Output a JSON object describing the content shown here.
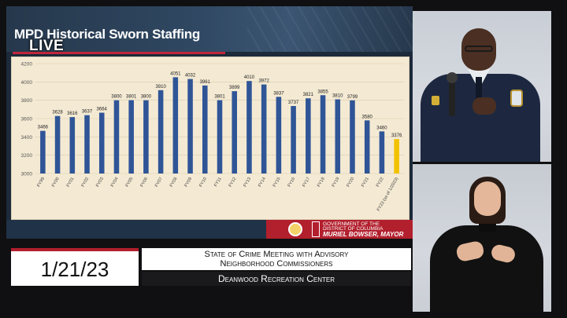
{
  "broadcast": {
    "live_badge": "LIVE",
    "date": "1/21/23",
    "info_line1": "State of Crime Meeting with Advisory",
    "info_line2": "Neighborhood Commissioners",
    "venue": "Deanwood Recreation Center"
  },
  "slide": {
    "title": "MPD Historical Sworn Staffing",
    "footer": {
      "gov_line1": "GOVERNMENT OF THE",
      "gov_line2": "DISTRICT OF COLUMBIA",
      "mayor": "MURIEL BOWSER, MAYOR"
    }
  },
  "colors": {
    "bar": "#2f5597",
    "highlight_bar": "#f2c200",
    "chart_background": "#f4ead3",
    "brand_red": "#b21f2d"
  },
  "chart_data": {
    "type": "bar",
    "title": "",
    "xlabel": "",
    "ylabel": "",
    "ylim": [
      3000,
      4200
    ],
    "yticks": [
      3000,
      3200,
      3400,
      3600,
      3800,
      4000,
      4200
    ],
    "grid": true,
    "categories": [
      "FY99",
      "FY00",
      "FY01",
      "FY02",
      "FY03",
      "FY04",
      "FY05",
      "FY06",
      "FY07",
      "FY08",
      "FY09",
      "FY10",
      "FY11",
      "FY12",
      "FY13",
      "FY14",
      "FY15",
      "FY16",
      "FY17",
      "FY18",
      "FY19",
      "FY20",
      "FY21",
      "FY22",
      "FY23 (as of 1/2023)"
    ],
    "values": [
      3466,
      3628,
      3616,
      3637,
      3664,
      3800,
      3801,
      3800,
      3910,
      4051,
      4032,
      3961,
      3801,
      3899,
      4010,
      3972,
      3837,
      3737,
      3821,
      3855,
      3810,
      3799,
      3580,
      3460,
      3376
    ],
    "highlight_index": 24
  }
}
